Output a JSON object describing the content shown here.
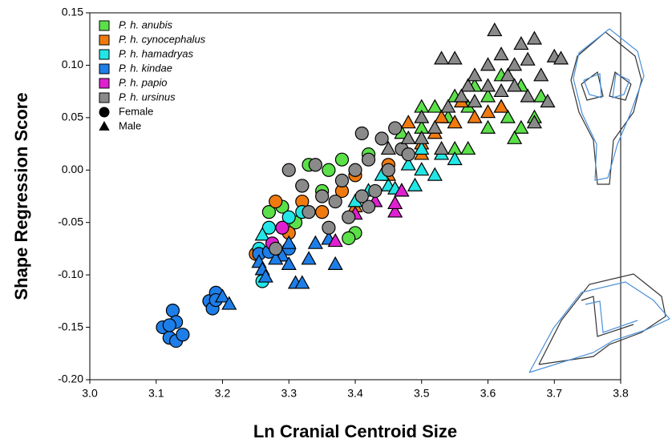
{
  "chart_data": {
    "type": "scatter",
    "xlabel": "Ln Cranial Centroid Size",
    "ylabel": "Shape Regression Score",
    "xlim": [
      3.0,
      3.8
    ],
    "ylim": [
      -0.2,
      0.15
    ],
    "xticks": [
      {
        "value": 3.0,
        "label": "3.0"
      },
      3.1,
      3.2,
      3.3,
      3.4,
      3.5,
      3.6,
      3.7,
      {
        "value": 3.8,
        "label": "3.8"
      }
    ],
    "yticks": [
      {
        "value": -0.2,
        "label": "-0.20"
      },
      {
        "value": -0.15,
        "label": "-0.15"
      },
      {
        "value": -0.1,
        "label": "-0.10"
      },
      {
        "value": -0.05,
        "label": "-0.05"
      },
      {
        "value": 0,
        "label": "0.00"
      },
      {
        "value": 0.05,
        "label": "0.05"
      },
      {
        "value": 0.1,
        "label": "0.10"
      },
      {
        "value": 0.15,
        "label": "0.15"
      }
    ],
    "markers": [
      {
        "name": "Female",
        "shape": "circle"
      },
      {
        "name": "Male",
        "shape": "triangle"
      }
    ],
    "series": [
      {
        "name": "P. h. anubis",
        "color": "#5be04a",
        "x": [
          3.27,
          3.29,
          3.32,
          3.33,
          3.36,
          3.38,
          3.4,
          3.39,
          3.42,
          3.35,
          3.31,
          3.47,
          3.5,
          3.52,
          3.55,
          3.57,
          3.58,
          3.6,
          3.62,
          3.63,
          3.65,
          3.67,
          3.65,
          3.55,
          3.57,
          3.6,
          3.68,
          3.54,
          3.5,
          3.62,
          3.64
        ],
        "values": [
          -0.04,
          -0.035,
          -0.015,
          0.005,
          0,
          0.01,
          -0.06,
          -0.065,
          0.015,
          -0.02,
          -0.05,
          0.035,
          0.04,
          0.06,
          0.07,
          0.06,
          0.08,
          0.07,
          0.06,
          0.05,
          0.04,
          0.05,
          0.08,
          0.02,
          0.02,
          0.04,
          0.07,
          0.05,
          0.06,
          0.09,
          0.03
        ],
        "marker": [
          0,
          0,
          0,
          0,
          0,
          0,
          0,
          0,
          0,
          0,
          0,
          1,
          1,
          1,
          1,
          1,
          1,
          1,
          1,
          1,
          1,
          1,
          1,
          1,
          1,
          1,
          1,
          1,
          1,
          1,
          1
        ]
      },
      {
        "name": "P. h. cynocephalus",
        "color": "#f07a10",
        "x": [
          3.25,
          3.28,
          3.32,
          3.35,
          3.38,
          3.4,
          3.45,
          3.3,
          3.4,
          3.45,
          3.5,
          3.52,
          3.55,
          3.58,
          3.6,
          3.62,
          3.48,
          3.53,
          3.56,
          3.5
        ],
        "values": [
          -0.08,
          -0.03,
          -0.03,
          -0.04,
          -0.02,
          -0.005,
          0.005,
          -0.06,
          -0.035,
          -0.005,
          0.015,
          0.035,
          0.045,
          0.05,
          0.055,
          0.06,
          0.045,
          0.05,
          0.065,
          0.025
        ],
        "marker": [
          0,
          0,
          0,
          0,
          0,
          0,
          0,
          0,
          1,
          1,
          1,
          1,
          1,
          1,
          1,
          1,
          1,
          1,
          1,
          1
        ]
      },
      {
        "name": "P. h. hamadryas",
        "color": "#22e6e6",
        "x": [
          3.26,
          3.255,
          3.27,
          3.3,
          3.32,
          3.26,
          3.4,
          3.45,
          3.47,
          3.49,
          3.5,
          3.52,
          3.55,
          3.42,
          3.44,
          3.48,
          3.46,
          3.5,
          3.53
        ],
        "values": [
          -0.106,
          -0.075,
          -0.055,
          -0.045,
          -0.04,
          -0.062,
          -0.03,
          -0.015,
          -0.02,
          -0.015,
          0,
          -0.005,
          0.01,
          -0.02,
          -0.005,
          0.005,
          -0.018,
          0.02,
          0.015
        ],
        "marker": [
          0,
          0,
          0,
          0,
          0,
          1,
          1,
          1,
          1,
          1,
          1,
          1,
          1,
          1,
          1,
          1,
          1,
          1,
          1
        ]
      },
      {
        "name": "P. h. kindae",
        "color": "#1e7ee8",
        "x": [
          3.11,
          3.12,
          3.125,
          3.13,
          3.13,
          3.14,
          3.12,
          3.18,
          3.19,
          3.185,
          3.19,
          3.255,
          3.27,
          3.3,
          3.2,
          3.21,
          3.255,
          3.26,
          3.265,
          3.29,
          3.3,
          3.31,
          3.32,
          3.33,
          3.34,
          3.36,
          3.37,
          3.28,
          3.3
        ],
        "values": [
          -0.15,
          -0.16,
          -0.134,
          -0.145,
          -0.163,
          -0.157,
          -0.148,
          -0.125,
          -0.117,
          -0.132,
          -0.124,
          -0.08,
          -0.078,
          -0.075,
          -0.121,
          -0.128,
          -0.088,
          -0.095,
          -0.102,
          -0.082,
          -0.07,
          -0.108,
          -0.108,
          -0.085,
          -0.07,
          -0.066,
          -0.09,
          -0.085,
          -0.09
        ],
        "marker": [
          0,
          0,
          0,
          0,
          0,
          0,
          0,
          0,
          0,
          0,
          0,
          0,
          0,
          0,
          1,
          1,
          1,
          1,
          1,
          1,
          1,
          1,
          1,
          1,
          1,
          1,
          1,
          1,
          1
        ]
      },
      {
        "name": "P. h. papio",
        "color": "#e020d0",
        "x": [
          3.275,
          3.29,
          3.37,
          3.4,
          3.43,
          3.46,
          3.47,
          3.46
        ],
        "values": [
          -0.07,
          -0.055,
          -0.068,
          -0.042,
          -0.03,
          -0.04,
          -0.02,
          -0.032
        ],
        "marker": [
          0,
          0,
          1,
          1,
          1,
          1,
          1,
          1
        ]
      },
      {
        "name": "P. h. ursinus",
        "color": "#8a8a8a",
        "x": [
          3.28,
          3.3,
          3.32,
          3.34,
          3.35,
          3.37,
          3.38,
          3.4,
          3.41,
          3.42,
          3.43,
          3.45,
          3.46,
          3.47,
          3.44,
          3.39,
          3.36,
          3.33,
          3.42,
          3.48,
          3.41,
          3.45,
          3.48,
          3.5,
          3.52,
          3.54,
          3.55,
          3.53,
          3.57,
          3.58,
          3.6,
          3.61,
          3.62,
          3.63,
          3.64,
          3.65,
          3.66,
          3.67,
          3.68,
          3.7,
          3.71,
          3.69,
          3.67,
          3.6,
          3.56,
          3.64,
          3.66,
          3.58,
          3.62,
          3.5,
          3.53
        ],
        "values": [
          -0.075,
          0,
          -0.015,
          0.005,
          -0.025,
          -0.03,
          -0.01,
          0,
          0.035,
          0.01,
          -0.02,
          0,
          0.04,
          0.02,
          0.03,
          -0.045,
          -0.055,
          -0.04,
          -0.035,
          0.015,
          -0.025,
          0.02,
          0.03,
          0.05,
          0.04,
          0.06,
          0.106,
          0.106,
          0.08,
          0.09,
          0.1,
          0.133,
          0.11,
          0.09,
          0.1,
          0.12,
          0.105,
          0.125,
          0.09,
          0.108,
          0.106,
          0.065,
          0.045,
          0.08,
          0.07,
          0.08,
          0.07,
          0.065,
          0.075,
          0.03,
          0.02
        ],
        "marker": [
          0,
          0,
          0,
          0,
          0,
          0,
          0,
          0,
          0,
          0,
          0,
          0,
          0,
          0,
          0,
          0,
          0,
          0,
          0,
          0,
          0,
          1,
          1,
          1,
          1,
          1,
          1,
          1,
          1,
          1,
          1,
          1,
          1,
          1,
          1,
          1,
          1,
          1,
          1,
          1,
          1,
          1,
          1,
          1,
          1,
          1,
          1,
          1,
          1,
          1,
          1
        ]
      }
    ]
  }
}
